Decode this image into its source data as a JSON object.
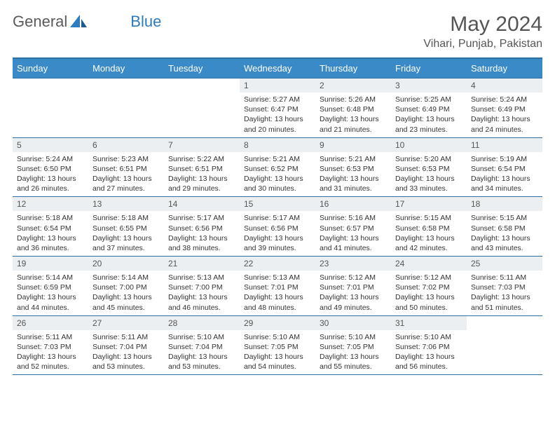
{
  "logo": {
    "text1": "General",
    "text2": "Blue"
  },
  "title": {
    "month": "May 2024",
    "location": "Vihari, Punjab, Pakistan"
  },
  "colors": {
    "header_bg": "#3a8ac8",
    "header_border": "#2f6fa3",
    "daynum_bg": "#eceff1",
    "text": "#333333",
    "logo_gray": "#5a5a5a",
    "logo_blue": "#2f7bbf"
  },
  "weekdays": [
    "Sunday",
    "Monday",
    "Tuesday",
    "Wednesday",
    "Thursday",
    "Friday",
    "Saturday"
  ],
  "weeks": [
    [
      null,
      null,
      null,
      {
        "n": "1",
        "sr": "5:27 AM",
        "ss": "6:47 PM",
        "dl": "13 hours and 20 minutes."
      },
      {
        "n": "2",
        "sr": "5:26 AM",
        "ss": "6:48 PM",
        "dl": "13 hours and 21 minutes."
      },
      {
        "n": "3",
        "sr": "5:25 AM",
        "ss": "6:49 PM",
        "dl": "13 hours and 23 minutes."
      },
      {
        "n": "4",
        "sr": "5:24 AM",
        "ss": "6:49 PM",
        "dl": "13 hours and 24 minutes."
      }
    ],
    [
      {
        "n": "5",
        "sr": "5:24 AM",
        "ss": "6:50 PM",
        "dl": "13 hours and 26 minutes."
      },
      {
        "n": "6",
        "sr": "5:23 AM",
        "ss": "6:51 PM",
        "dl": "13 hours and 27 minutes."
      },
      {
        "n": "7",
        "sr": "5:22 AM",
        "ss": "6:51 PM",
        "dl": "13 hours and 29 minutes."
      },
      {
        "n": "8",
        "sr": "5:21 AM",
        "ss": "6:52 PM",
        "dl": "13 hours and 30 minutes."
      },
      {
        "n": "9",
        "sr": "5:21 AM",
        "ss": "6:53 PM",
        "dl": "13 hours and 31 minutes."
      },
      {
        "n": "10",
        "sr": "5:20 AM",
        "ss": "6:53 PM",
        "dl": "13 hours and 33 minutes."
      },
      {
        "n": "11",
        "sr": "5:19 AM",
        "ss": "6:54 PM",
        "dl": "13 hours and 34 minutes."
      }
    ],
    [
      {
        "n": "12",
        "sr": "5:18 AM",
        "ss": "6:54 PM",
        "dl": "13 hours and 36 minutes."
      },
      {
        "n": "13",
        "sr": "5:18 AM",
        "ss": "6:55 PM",
        "dl": "13 hours and 37 minutes."
      },
      {
        "n": "14",
        "sr": "5:17 AM",
        "ss": "6:56 PM",
        "dl": "13 hours and 38 minutes."
      },
      {
        "n": "15",
        "sr": "5:17 AM",
        "ss": "6:56 PM",
        "dl": "13 hours and 39 minutes."
      },
      {
        "n": "16",
        "sr": "5:16 AM",
        "ss": "6:57 PM",
        "dl": "13 hours and 41 minutes."
      },
      {
        "n": "17",
        "sr": "5:15 AM",
        "ss": "6:58 PM",
        "dl": "13 hours and 42 minutes."
      },
      {
        "n": "18",
        "sr": "5:15 AM",
        "ss": "6:58 PM",
        "dl": "13 hours and 43 minutes."
      }
    ],
    [
      {
        "n": "19",
        "sr": "5:14 AM",
        "ss": "6:59 PM",
        "dl": "13 hours and 44 minutes."
      },
      {
        "n": "20",
        "sr": "5:14 AM",
        "ss": "7:00 PM",
        "dl": "13 hours and 45 minutes."
      },
      {
        "n": "21",
        "sr": "5:13 AM",
        "ss": "7:00 PM",
        "dl": "13 hours and 46 minutes."
      },
      {
        "n": "22",
        "sr": "5:13 AM",
        "ss": "7:01 PM",
        "dl": "13 hours and 48 minutes."
      },
      {
        "n": "23",
        "sr": "5:12 AM",
        "ss": "7:01 PM",
        "dl": "13 hours and 49 minutes."
      },
      {
        "n": "24",
        "sr": "5:12 AM",
        "ss": "7:02 PM",
        "dl": "13 hours and 50 minutes."
      },
      {
        "n": "25",
        "sr": "5:11 AM",
        "ss": "7:03 PM",
        "dl": "13 hours and 51 minutes."
      }
    ],
    [
      {
        "n": "26",
        "sr": "5:11 AM",
        "ss": "7:03 PM",
        "dl": "13 hours and 52 minutes."
      },
      {
        "n": "27",
        "sr": "5:11 AM",
        "ss": "7:04 PM",
        "dl": "13 hours and 53 minutes."
      },
      {
        "n": "28",
        "sr": "5:10 AM",
        "ss": "7:04 PM",
        "dl": "13 hours and 53 minutes."
      },
      {
        "n": "29",
        "sr": "5:10 AM",
        "ss": "7:05 PM",
        "dl": "13 hours and 54 minutes."
      },
      {
        "n": "30",
        "sr": "5:10 AM",
        "ss": "7:05 PM",
        "dl": "13 hours and 55 minutes."
      },
      {
        "n": "31",
        "sr": "5:10 AM",
        "ss": "7:06 PM",
        "dl": "13 hours and 56 minutes."
      },
      null
    ]
  ],
  "labels": {
    "sunrise": "Sunrise: ",
    "sunset": "Sunset: ",
    "daylight": "Daylight: "
  }
}
